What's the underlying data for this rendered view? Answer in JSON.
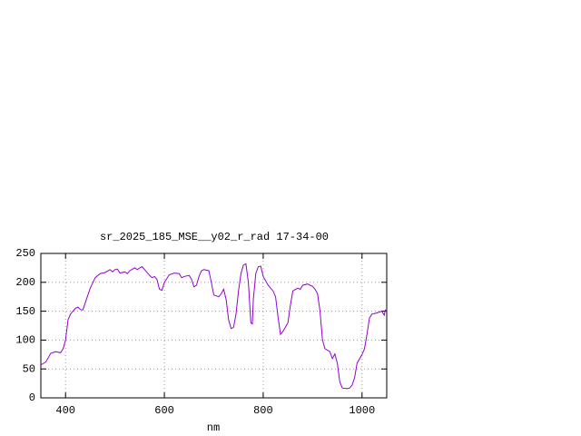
{
  "chart_data": {
    "type": "line",
    "title": "sr_2025_185_MSE__y02_r_rad 17-34-00",
    "x_label": "nm",
    "x": [
      350,
      360,
      370,
      380,
      390,
      395,
      400,
      405,
      410,
      420,
      425,
      430,
      435,
      440,
      450,
      460,
      470,
      480,
      490,
      495,
      500,
      505,
      510,
      520,
      525,
      530,
      540,
      545,
      550,
      555,
      560,
      570,
      575,
      580,
      585,
      590,
      595,
      600,
      610,
      620,
      630,
      635,
      640,
      650,
      655,
      660,
      665,
      670,
      675,
      680,
      690,
      695,
      700,
      710,
      715,
      720,
      725,
      730,
      735,
      740,
      745,
      750,
      755,
      760,
      765,
      770,
      775,
      778,
      780,
      785,
      790,
      795,
      800,
      810,
      820,
      825,
      830,
      835,
      840,
      850,
      855,
      860,
      870,
      875,
      880,
      890,
      900,
      905,
      910,
      915,
      920,
      925,
      935,
      940,
      945,
      950,
      955,
      960,
      970,
      975,
      980,
      985,
      990,
      1000,
      1005,
      1010,
      1015,
      1020,
      1030,
      1040,
      1045,
      1047,
      1050
    ],
    "series": [
      {
        "name": "sr_2025_185_MSE__y02_r_rad",
        "color": "#9400d3",
        "values": [
          57,
          62,
          77,
          80,
          78,
          85,
          100,
          135,
          145,
          155,
          157,
          153,
          152,
          165,
          190,
          208,
          215,
          217,
          222,
          218,
          222,
          223,
          216,
          218,
          215,
          220,
          225,
          222,
          225,
          227,
          222,
          212,
          208,
          210,
          205,
          188,
          186,
          200,
          213,
          216,
          215,
          208,
          210,
          212,
          205,
          192,
          195,
          210,
          220,
          222,
          220,
          200,
          178,
          175,
          180,
          188,
          170,
          135,
          120,
          122,
          145,
          185,
          215,
          230,
          232,
          200,
          130,
          128,
          170,
          215,
          227,
          228,
          210,
          195,
          185,
          175,
          140,
          110,
          115,
          130,
          160,
          185,
          190,
          188,
          195,
          197,
          193,
          188,
          180,
          150,
          100,
          85,
          80,
          68,
          76,
          60,
          28,
          17,
          16,
          17,
          22,
          35,
          60,
          75,
          85,
          110,
          138,
          145,
          147,
          150,
          143,
          152,
          150
        ]
      }
    ],
    "xlim": [
      350,
      1050
    ],
    "ylim": [
      0,
      250
    ],
    "xticks": [
      400,
      600,
      800,
      1000
    ],
    "yticks": [
      0,
      50,
      100,
      150,
      200,
      250
    ],
    "grid": true
  }
}
